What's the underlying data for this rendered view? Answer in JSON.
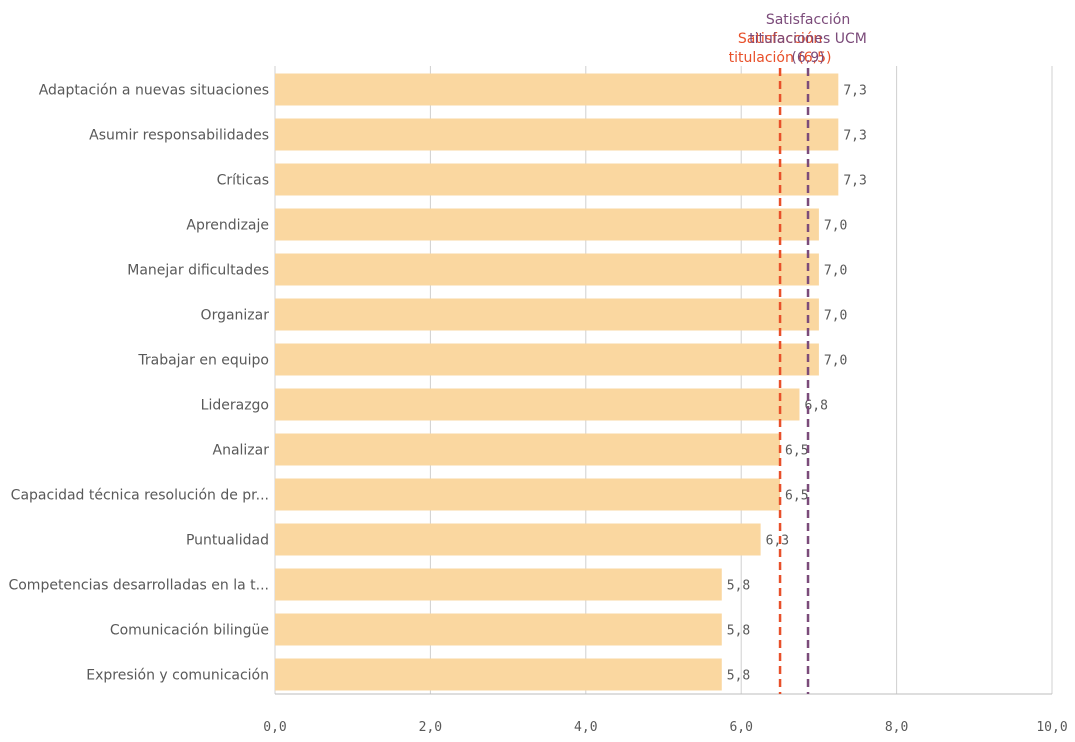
{
  "chart_data": {
    "type": "bar",
    "orientation": "horizontal",
    "categories": [
      "Adaptación a nuevas situaciones",
      "Asumir responsabilidades",
      "Críticas",
      "Aprendizaje",
      "Manejar dificultades",
      "Organizar",
      "Trabajar en equipo",
      "Liderazgo",
      "Analizar",
      "Capacidad técnica resolución de pr...",
      "Puntualidad",
      "Competencias desarrolladas en la t...",
      "Comunicación bilingüe",
      "Expresión y comunicación"
    ],
    "values": [
      7.25,
      7.25,
      7.25,
      7.0,
      7.0,
      7.0,
      7.0,
      6.75,
      6.5,
      6.5,
      6.25,
      5.75,
      5.75,
      5.75
    ],
    "value_labels": [
      "7,3",
      "7,3",
      "7,3",
      "7,0",
      "7,0",
      "7,0",
      "7,0",
      "6,8",
      "6,5",
      "6,5",
      "6,3",
      "5,8",
      "5,8",
      "5,8"
    ],
    "xlim": [
      0,
      10
    ],
    "xticks": [
      0,
      2,
      4,
      6,
      8,
      10
    ],
    "xtick_labels": [
      "0,0",
      "2,0",
      "4,0",
      "6,0",
      "8,0",
      "10,0"
    ],
    "grid": true,
    "bar_color": "#fad7a0",
    "reference_lines": [
      {
        "value": 6.5,
        "label_lines": [
          "Satisfacción",
          "titulación (6,5)"
        ],
        "color": "#e8502a",
        "style": "dashed"
      },
      {
        "value": 6.86,
        "label_lines": [
          "Satisfacción",
          "titulaciones UCM",
          "(6,9)"
        ],
        "color": "#7b4b7a",
        "style": "dashed"
      }
    ]
  }
}
